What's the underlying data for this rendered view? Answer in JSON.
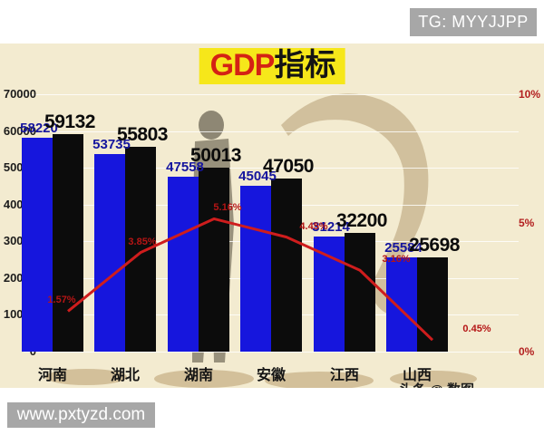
{
  "overlays": {
    "top_badge": "TG: MYYJJPP",
    "bottom_badge": "www.pxtyzd.com",
    "credit_clipped": "头条 @ 数图"
  },
  "title": {
    "highlight": "GDP",
    "rest": "指标"
  },
  "chart_data": {
    "type": "bar",
    "title": "GDP指标",
    "categories": [
      "河南",
      "湖北",
      "湖南",
      "安徽",
      "江西",
      "山西"
    ],
    "series": [
      {
        "id": "blue-bars",
        "color": "#1616dd",
        "values": [
          58220,
          53735,
          47558,
          45045,
          31214,
          25584
        ]
      },
      {
        "id": "black-bars",
        "color": "#0c0c0c",
        "values": [
          59132,
          55803,
          50013,
          47050,
          32200,
          25698
        ]
      }
    ],
    "line": {
      "id": "growth-rate-line",
      "color": "#cf1d1d",
      "values": [
        1.57,
        3.85,
        5.16,
        4.45,
        3.16,
        0.45
      ],
      "labels": [
        "1.57%",
        "3.85%",
        "5.16%",
        "4.45%",
        "3.16%",
        "0.45%"
      ]
    },
    "left_axis": {
      "ticks": [
        "70000",
        "60000",
        "50000",
        "40000",
        "30000",
        "20000",
        "10000",
        "0"
      ],
      "min": 0,
      "max": 70000,
      "grid": true
    },
    "right_axis": {
      "ticks": [
        "10%",
        "5%",
        "0%"
      ],
      "min": 0,
      "max": 10
    },
    "legend": "none"
  }
}
